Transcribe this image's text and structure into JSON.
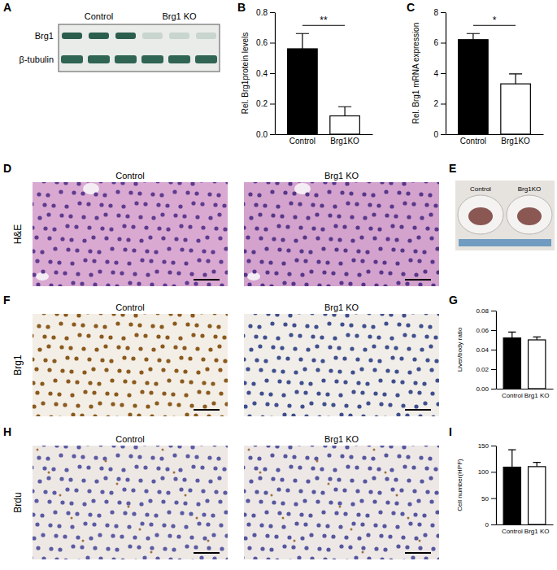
{
  "chart_data": [
    {
      "type": "bar",
      "title": "B",
      "categories": [
        "Control",
        "Brg1KO"
      ],
      "values": [
        0.56,
        0.12
      ],
      "errors": [
        0.1,
        0.06
      ],
      "colors": [
        "#000000",
        "#ffffff"
      ],
      "y_label": "Rel. Brg1protein levels",
      "ylim": [
        0,
        0.8
      ],
      "yticks": [
        {
          "value": 0,
          "label": "0.0"
        },
        0.2,
        0.4,
        0.6,
        0.8
      ],
      "annotations": [
        "**"
      ]
    },
    {
      "type": "bar",
      "title": "C",
      "categories": [
        "Control",
        "Brg1KO"
      ],
      "values": [
        6.2,
        3.3
      ],
      "errors": [
        0.4,
        0.65
      ],
      "colors": [
        "#000000",
        "#ffffff"
      ],
      "y_label": "Rel. Brg1 mRNA expression",
      "ylim": [
        0,
        8
      ],
      "yticks": [
        0,
        2,
        4,
        6,
        8
      ],
      "annotations": [
        "*"
      ]
    },
    {
      "type": "bar",
      "title": "G",
      "categories": [
        "Control",
        "Brg1 KO"
      ],
      "values": [
        0.052,
        0.05
      ],
      "errors": [
        0.006,
        0.003
      ],
      "colors": [
        "#000000",
        "#ffffff"
      ],
      "y_label": "Liver/body ratio",
      "ylim": [
        0,
        0.08
      ],
      "yticks": [
        {
          "value": 0,
          "label": "0.00"
        },
        0.02,
        0.04,
        0.06,
        0.08
      ]
    },
    {
      "type": "bar",
      "title": "I",
      "categories": [
        "Control",
        "Brg1 KO"
      ],
      "values": [
        109,
        110
      ],
      "errors": [
        33,
        8
      ],
      "colors": [
        "#000000",
        "#ffffff"
      ],
      "y_label": "Cell number(HPF)",
      "ylim": [
        0,
        150
      ],
      "yticks": [
        0,
        50,
        100,
        150
      ]
    }
  ],
  "image_panels": [
    {
      "letter": "A",
      "kind": "blot",
      "column_labels": [
        "Control",
        "Brg1 KO"
      ],
      "row_labels": [
        "Brg1",
        "β-tubulin"
      ]
    },
    {
      "letter": "D",
      "kind": "he",
      "column_labels": [
        "Control",
        "Brg1 KO"
      ],
      "row_labels": [
        "H&E"
      ]
    },
    {
      "letter": "E",
      "kind": "photo",
      "column_labels": [
        "Control",
        "Brg1KO"
      ]
    },
    {
      "letter": "F",
      "kind": "ihc",
      "column_labels": [
        "Control",
        "Brg1 KO"
      ],
      "row_labels": [
        "Brg1"
      ]
    },
    {
      "letter": "H",
      "kind": "brdu",
      "column_labels": [
        "Control",
        "Brg1 KO"
      ],
      "row_labels": [
        "Brdu"
      ]
    }
  ]
}
